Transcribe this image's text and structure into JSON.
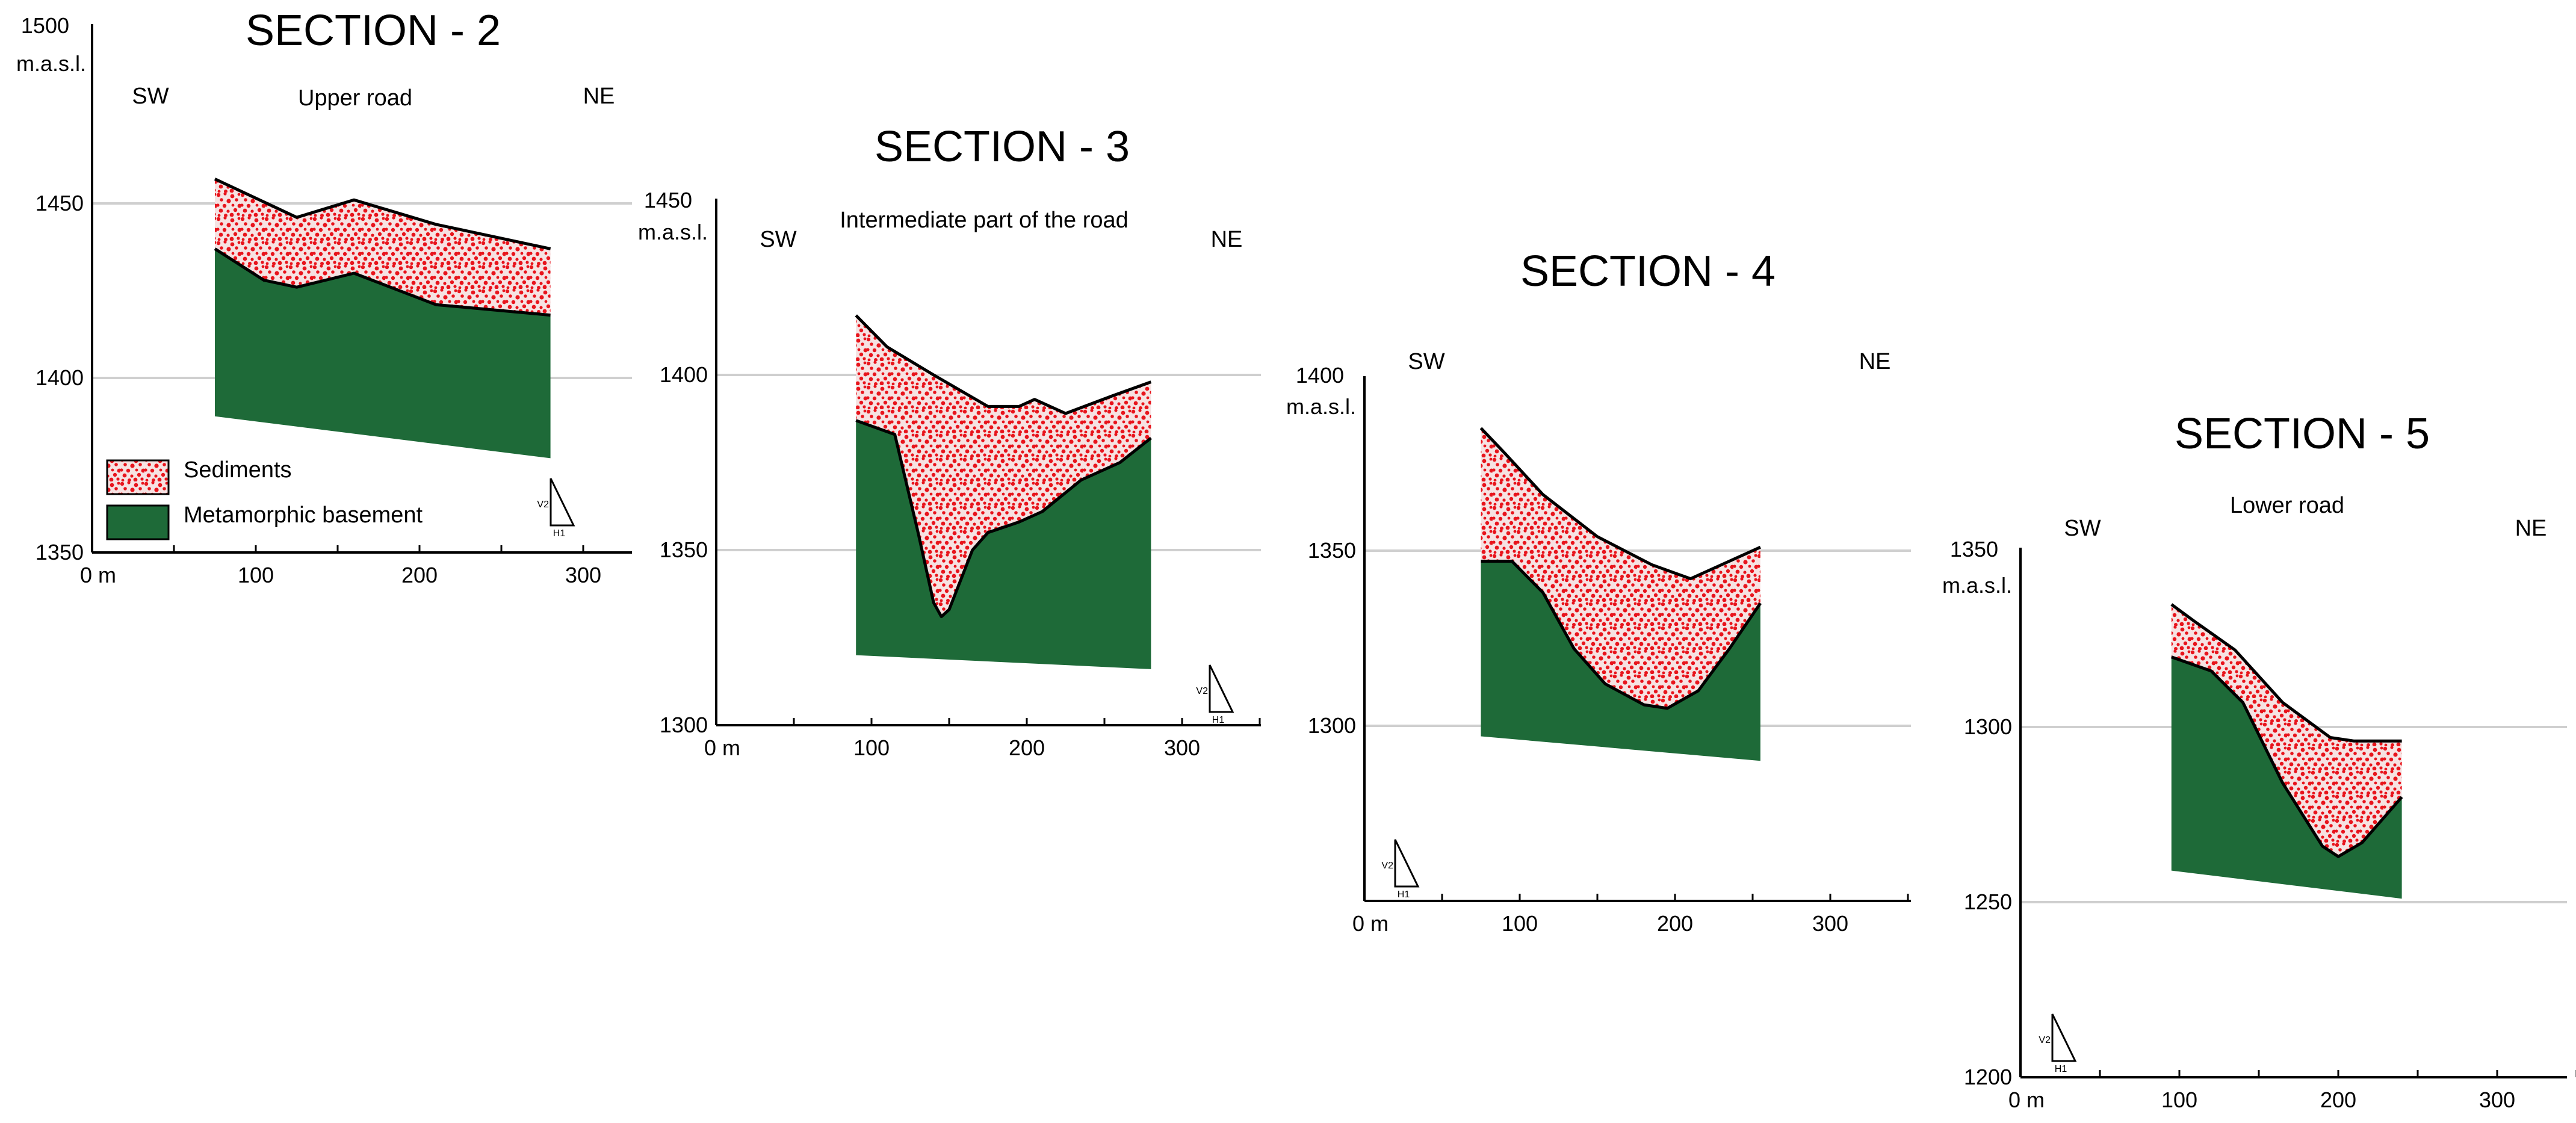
{
  "chart_data": [
    {
      "type": "area",
      "title": "SECTION - 2",
      "subtitle": "Upper road",
      "ylabel_top": "1500",
      "yunit": "m.a.s.l.",
      "left_label": "SW",
      "right_label": "NE",
      "x_ticks": [
        "0 m",
        "100",
        "200",
        "300"
      ],
      "y_ticks": [
        "1450",
        "1400",
        "1350"
      ],
      "xlim": [
        0,
        350
      ],
      "ylim": [
        1350,
        1500
      ],
      "scale_label_v": "V2",
      "scale_label_h": "H1",
      "legend": [
        {
          "key": "sediments",
          "label": "Sediments",
          "color": "#e8141c"
        },
        {
          "key": "basement",
          "label": "Metamorphic basement",
          "color": "#1e6a38"
        }
      ],
      "series": [
        {
          "name": "Sediments",
          "x": [
            75,
            125,
            160,
            210,
            280
          ],
          "y": [
            1457,
            1446,
            1451,
            1444,
            1437
          ]
        },
        {
          "name": "Metamorphic basement",
          "x": [
            75,
            105,
            125,
            160,
            210,
            280
          ],
          "y": [
            1437,
            1428,
            1426,
            1430,
            1421,
            1418
          ]
        }
      ],
      "bottom": {
        "x": [
          75,
          280
        ],
        "y": [
          1389,
          1377
        ]
      }
    },
    {
      "type": "area",
      "title": "SECTION - 3",
      "subtitle": "Intermediate part of the road",
      "ylabel_top": "1450",
      "yunit": "m.a.s.l.",
      "left_label": "SW",
      "right_label": "NE",
      "x_ticks": [
        "0 m",
        "100",
        "200",
        "300"
      ],
      "y_ticks": [
        "1400",
        "1350",
        "1300"
      ],
      "xlim": [
        0,
        350
      ],
      "ylim": [
        1300,
        1450
      ],
      "scale_label_v": "V2",
      "scale_label_h": "H1",
      "series": [
        {
          "name": "Sediments",
          "x": [
            90,
            110,
            140,
            175,
            195,
            205,
            225,
            255,
            280
          ],
          "y": [
            1417,
            1408,
            1400,
            1391,
            1391,
            1393,
            1389,
            1394,
            1398
          ]
        },
        {
          "name": "Metamorphic basement",
          "x": [
            90,
            115,
            130,
            140,
            145,
            150,
            165,
            175,
            195,
            210,
            235,
            260,
            280
          ],
          "y": [
            1387,
            1383,
            1355,
            1335,
            1331,
            1333,
            1350,
            1355,
            1358,
            1361,
            1370,
            1375,
            1382
          ]
        }
      ],
      "bottom": {
        "x": [
          90,
          280
        ],
        "y": [
          1320,
          1316
        ]
      }
    },
    {
      "type": "area",
      "title": "SECTION - 4",
      "subtitle": "",
      "ylabel_top": "1400",
      "yunit": "m.a.s.l.",
      "left_label": "SW",
      "right_label": "NE",
      "x_ticks": [
        "0 m",
        "100",
        "200",
        "300"
      ],
      "y_ticks": [
        "1350",
        "1300"
      ],
      "xlim": [
        0,
        350
      ],
      "ylim": [
        1250,
        1400
      ],
      "scale_label_v": "V2",
      "scale_label_h": "H1",
      "series": [
        {
          "name": "Sediments",
          "x": [
            75,
            90,
            115,
            150,
            185,
            210,
            235,
            255
          ],
          "y": [
            1385,
            1378,
            1366,
            1354,
            1346,
            1342,
            1347,
            1351
          ]
        },
        {
          "name": "Metamorphic basement",
          "x": [
            75,
            95,
            115,
            135,
            155,
            180,
            195,
            215,
            235,
            255
          ],
          "y": [
            1347,
            1347,
            1338,
            1322,
            1312,
            1306,
            1305,
            1310,
            1322,
            1335
          ]
        }
      ],
      "bottom": {
        "x": [
          75,
          255
        ],
        "y": [
          1297,
          1290
        ]
      }
    },
    {
      "type": "area",
      "title": "SECTION - 5",
      "subtitle": "Lower road",
      "ylabel_top": "1350",
      "yunit": "m.a.s.l.",
      "left_label": "SW",
      "right_label": "NE",
      "x_ticks": [
        "0 m",
        "100",
        "200",
        "300"
      ],
      "y_ticks": [
        "1300",
        "1250",
        "1200"
      ],
      "xlim": [
        0,
        350
      ],
      "ylim": [
        1200,
        1350
      ],
      "scale_label_v": "V2",
      "scale_label_h": "H1",
      "series": [
        {
          "name": "Sediments",
          "x": [
            95,
            110,
            135,
            165,
            195,
            210,
            240
          ],
          "y": [
            1335,
            1330,
            1322,
            1307,
            1297,
            1296,
            1296
          ]
        },
        {
          "name": "Metamorphic basement",
          "x": [
            95,
            120,
            140,
            165,
            190,
            200,
            215,
            240
          ],
          "y": [
            1320,
            1316,
            1307,
            1284,
            1266,
            1263,
            1267,
            1280
          ]
        }
      ],
      "bottom": {
        "x": [
          95,
          240
        ],
        "y": [
          1259,
          1251
        ]
      }
    }
  ]
}
